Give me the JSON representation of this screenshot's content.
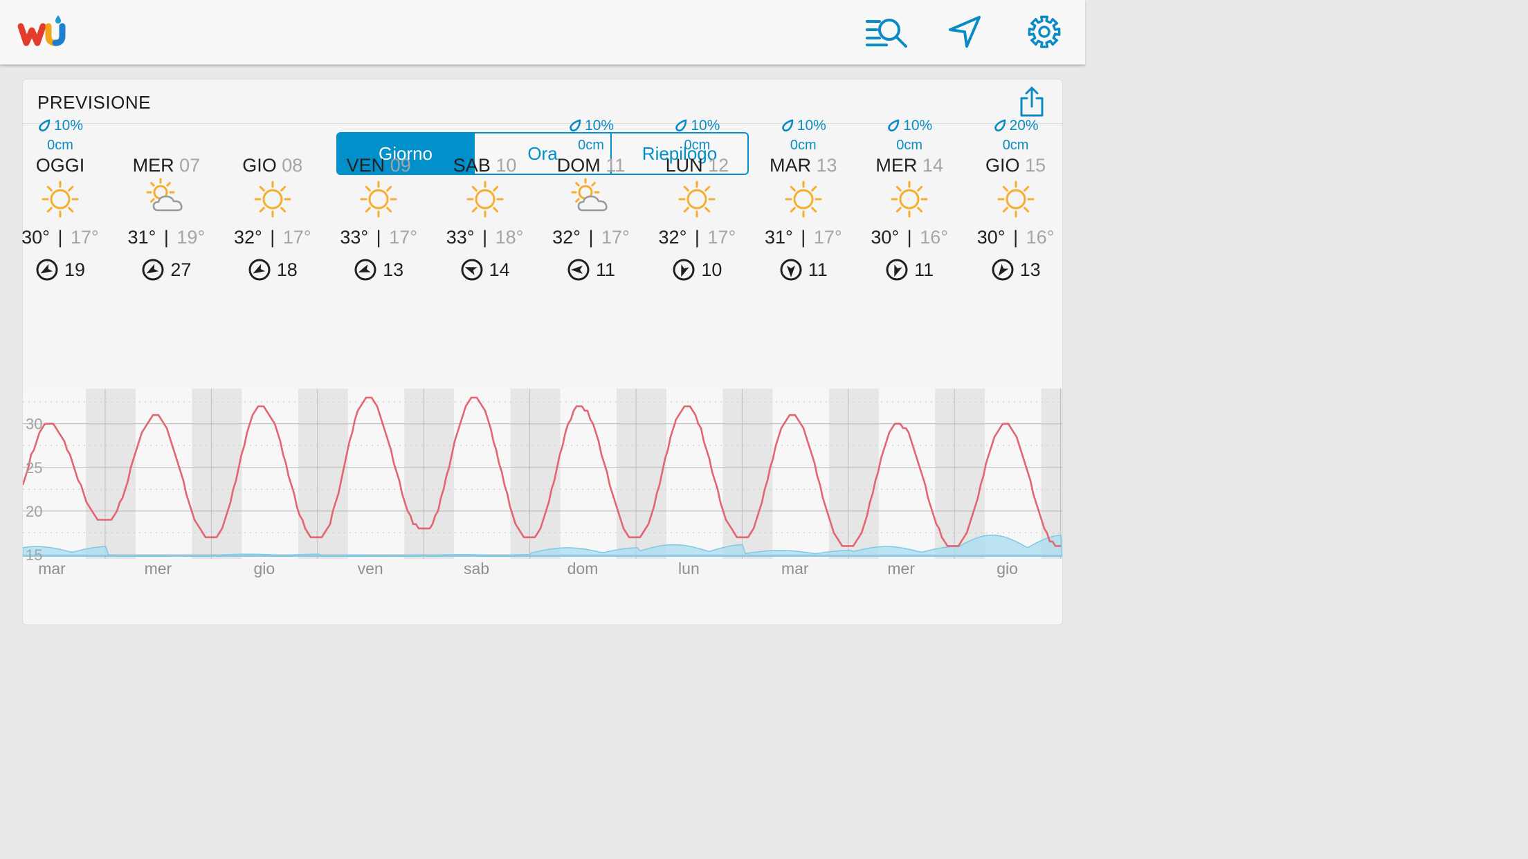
{
  "header": {
    "logo_icon": "wunderground-logo",
    "search_icon": "search-list-icon",
    "location_icon": "location-arrow-icon",
    "settings_icon": "gear-icon"
  },
  "panel": {
    "title": "PREVISIONE",
    "share_icon": "share-icon"
  },
  "tabs": [
    {
      "label": "Giorno",
      "active": true
    },
    {
      "label": "Ora",
      "active": false
    },
    {
      "label": "Riepilogo",
      "active": false
    }
  ],
  "days": [
    {
      "name": "OGGI",
      "date": "",
      "precip": "10%",
      "snow": "0cm",
      "icon": "sun",
      "high": "30°",
      "low": "17°",
      "wind": "19",
      "wind_dir": 240
    },
    {
      "name": "MER",
      "date": "07",
      "precip": "",
      "snow": "",
      "icon": "partly-cloudy",
      "high": "31°",
      "low": "19°",
      "wind": "27",
      "wind_dir": 240
    },
    {
      "name": "GIO",
      "date": "08",
      "precip": "",
      "snow": "",
      "icon": "sun",
      "high": "32°",
      "low": "17°",
      "wind": "18",
      "wind_dir": 240
    },
    {
      "name": "VEN",
      "date": "09",
      "precip": "",
      "snow": "",
      "icon": "sun",
      "high": "33°",
      "low": "17°",
      "wind": "13",
      "wind_dir": 250
    },
    {
      "name": "SAB",
      "date": "10",
      "precip": "",
      "snow": "",
      "icon": "sun",
      "high": "33°",
      "low": "18°",
      "wind": "14",
      "wind_dir": 290
    },
    {
      "name": "DOM",
      "date": "11",
      "precip": "10%",
      "snow": "0cm",
      "icon": "partly-cloudy",
      "high": "32°",
      "low": "17°",
      "wind": "11",
      "wind_dir": 270
    },
    {
      "name": "LUN",
      "date": "12",
      "precip": "10%",
      "snow": "0cm",
      "icon": "sun",
      "high": "32°",
      "low": "17°",
      "wind": "10",
      "wind_dir": 200
    },
    {
      "name": "MAR",
      "date": "13",
      "precip": "10%",
      "snow": "0cm",
      "icon": "sun",
      "high": "31°",
      "low": "17°",
      "wind": "11",
      "wind_dir": 180
    },
    {
      "name": "MER",
      "date": "14",
      "precip": "10%",
      "snow": "0cm",
      "icon": "sun",
      "high": "30°",
      "low": "16°",
      "wind": "11",
      "wind_dir": 200
    },
    {
      "name": "GIO",
      "date": "15",
      "precip": "20%",
      "snow": "0cm",
      "icon": "sun",
      "high": "30°",
      "low": "16°",
      "wind": "13",
      "wind_dir": 215
    }
  ],
  "colors": {
    "accent": "#0190c9",
    "temperature_line": "#e26671",
    "precip_fill": "#a8dcef",
    "sun": "#f5ae2e",
    "night_band": "#e6e6e6"
  },
  "chart_data": {
    "type": "line",
    "x_labels": [
      "mar",
      "mer",
      "gio",
      "ven",
      "sab",
      "dom",
      "lun",
      "mar",
      "mer",
      "gio"
    ],
    "y_ticks": [
      30,
      25,
      20,
      15
    ],
    "ylim": [
      15,
      32.5
    ],
    "grid": true,
    "series": [
      {
        "kind": "temperature",
        "daily_high": [
          30,
          31,
          32,
          33,
          33,
          32,
          32,
          31,
          30,
          30
        ],
        "daily_low": [
          17,
          19,
          17,
          17,
          18,
          17,
          17,
          17,
          16,
          16
        ]
      },
      {
        "kind": "precipitation",
        "relative_levels": [
          0.25,
          0.02,
          0.05,
          0.03,
          0.04,
          0.22,
          0.3,
          0.15,
          0.25,
          0.55
        ]
      }
    ]
  }
}
